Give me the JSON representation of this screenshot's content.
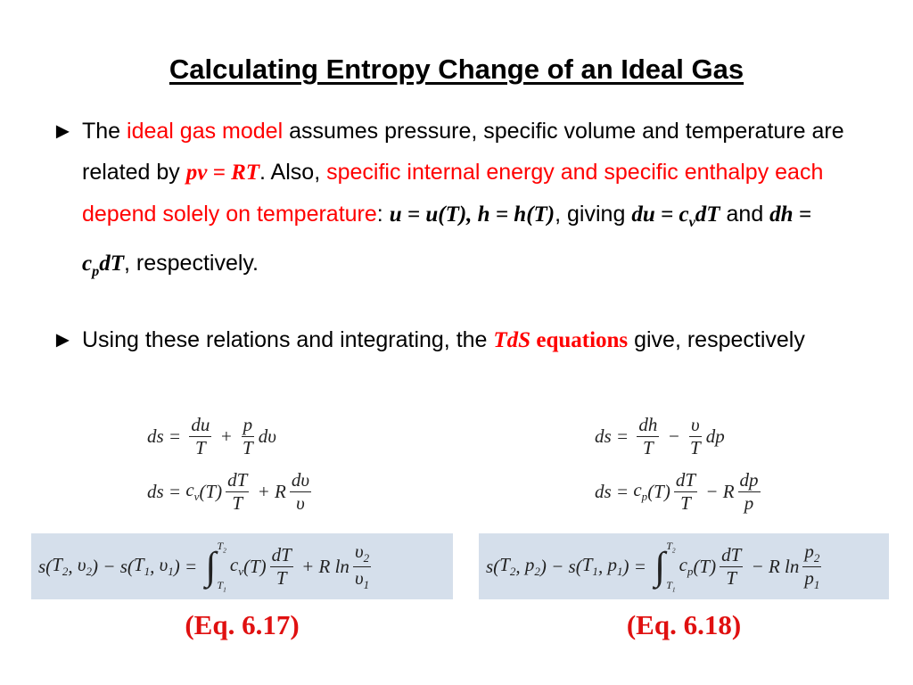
{
  "title": "Calculating Entropy Change of an Ideal Gas",
  "bullet_marker": "►",
  "bullets": [
    {
      "segments": [
        {
          "text": "The "
        },
        {
          "text": "ideal gas model",
          "color": "#ff0000"
        },
        {
          "text": " assumes pressure, specific volume and temperature are related by "
        },
        {
          "text": "pv = RT",
          "color": "#ff0000",
          "style": "math"
        },
        {
          "text": ".  Also, "
        },
        {
          "text": "specific internal energy and specific enthalpy each depend solely on temperature",
          "color": "#ff0000"
        },
        {
          "text": ":  "
        },
        {
          "text": "u = u(T), h = h(T)",
          "style": "math"
        },
        {
          "text": ", giving "
        },
        {
          "text": "du = c",
          "style": "math"
        },
        {
          "text": "v",
          "style": "math",
          "sub": true
        },
        {
          "text": "dT",
          "style": "math"
        },
        {
          "text": " and "
        },
        {
          "text": "dh = c",
          "style": "math"
        },
        {
          "text": "p",
          "style": "math",
          "sub": true
        },
        {
          "text": "dT",
          "style": "math"
        },
        {
          "text": ", respectively."
        }
      ]
    },
    {
      "segments": [
        {
          "text": "Using these relations and integrating, the "
        },
        {
          "text": "TdS",
          "color": "#ff0000",
          "style": "math"
        },
        {
          "text": " equations",
          "color": "#ff0000",
          "style": "bold"
        },
        {
          "text": " give, respectively"
        }
      ]
    }
  ],
  "columns": [
    {
      "equations": [
        [
          "ds = ",
          {
            "frac": [
              [
                "du"
              ],
              [
                "T"
              ]
            ]
          },
          " + ",
          {
            "frac": [
              [
                "p"
              ],
              [
                "T"
              ]
            ]
          },
          "dυ"
        ],
        [
          "ds = ",
          {
            "sub": [
              "c",
              "v"
            ]
          },
          "(T)",
          {
            "frac": [
              [
                "dT"
              ],
              [
                "T"
              ]
            ]
          },
          " + R",
          {
            "frac": [
              [
                "dυ"
              ],
              [
                "υ"
              ]
            ]
          }
        ]
      ],
      "boxed": [
        "s(",
        {
          "sub": [
            "T",
            "2"
          ]
        },
        ", ",
        {
          "sub": [
            "υ",
            "2"
          ]
        },
        ") − s(",
        {
          "sub": [
            "T",
            "1"
          ]
        },
        ", ",
        {
          "sub": [
            "υ",
            "1"
          ]
        },
        ") = ",
        {
          "int": {
            "sign": "∫",
            "lo": [
              {
                "sub": [
                  "T",
                  "1"
                ]
              }
            ],
            "hi": [
              {
                "sub": [
                  "T",
                  "2"
                ]
              }
            ]
          }
        },
        {
          "sub": [
            "c",
            "v"
          ]
        },
        "(T)",
        {
          "frac": [
            [
              "dT"
            ],
            [
              "T"
            ]
          ]
        },
        " + R ln",
        {
          "frac": [
            [
              {
                "sub": [
                  "υ",
                  "2"
                ]
              }
            ],
            [
              {
                "sub": [
                  "υ",
                  "1"
                ]
              }
            ]
          ]
        }
      ],
      "label": "(Eq. 6.17)"
    },
    {
      "equations": [
        [
          "ds = ",
          {
            "frac": [
              [
                "dh"
              ],
              [
                "T"
              ]
            ]
          },
          " − ",
          {
            "frac": [
              [
                "υ"
              ],
              [
                "T"
              ]
            ]
          },
          "dp"
        ],
        [
          "ds = ",
          {
            "sub": [
              "c",
              "p"
            ]
          },
          "(T)",
          {
            "frac": [
              [
                "dT"
              ],
              [
                "T"
              ]
            ]
          },
          " − R",
          {
            "frac": [
              [
                "dp"
              ],
              [
                "p"
              ]
            ]
          }
        ]
      ],
      "boxed": [
        "s(",
        {
          "sub": [
            "T",
            "2"
          ]
        },
        ", ",
        {
          "sub": [
            "p",
            "2"
          ]
        },
        ") − s(",
        {
          "sub": [
            "T",
            "1"
          ]
        },
        ", ",
        {
          "sub": [
            "p",
            "1"
          ]
        },
        ") = ",
        {
          "int": {
            "sign": "∫",
            "lo": [
              {
                "sub": [
                  "T",
                  "1"
                ]
              }
            ],
            "hi": [
              {
                "sub": [
                  "T",
                  "2"
                ]
              }
            ]
          }
        },
        {
          "sub": [
            "c",
            "p"
          ]
        },
        "(T)",
        {
          "frac": [
            [
              "dT"
            ],
            [
              "T"
            ]
          ]
        },
        " − R ln",
        {
          "frac": [
            [
              {
                "sub": [
                  "p",
                  "2"
                ]
              }
            ],
            [
              {
                "sub": [
                  "p",
                  "1"
                ]
              }
            ]
          ]
        }
      ],
      "label": "(Eq. 6.18)"
    }
  ]
}
